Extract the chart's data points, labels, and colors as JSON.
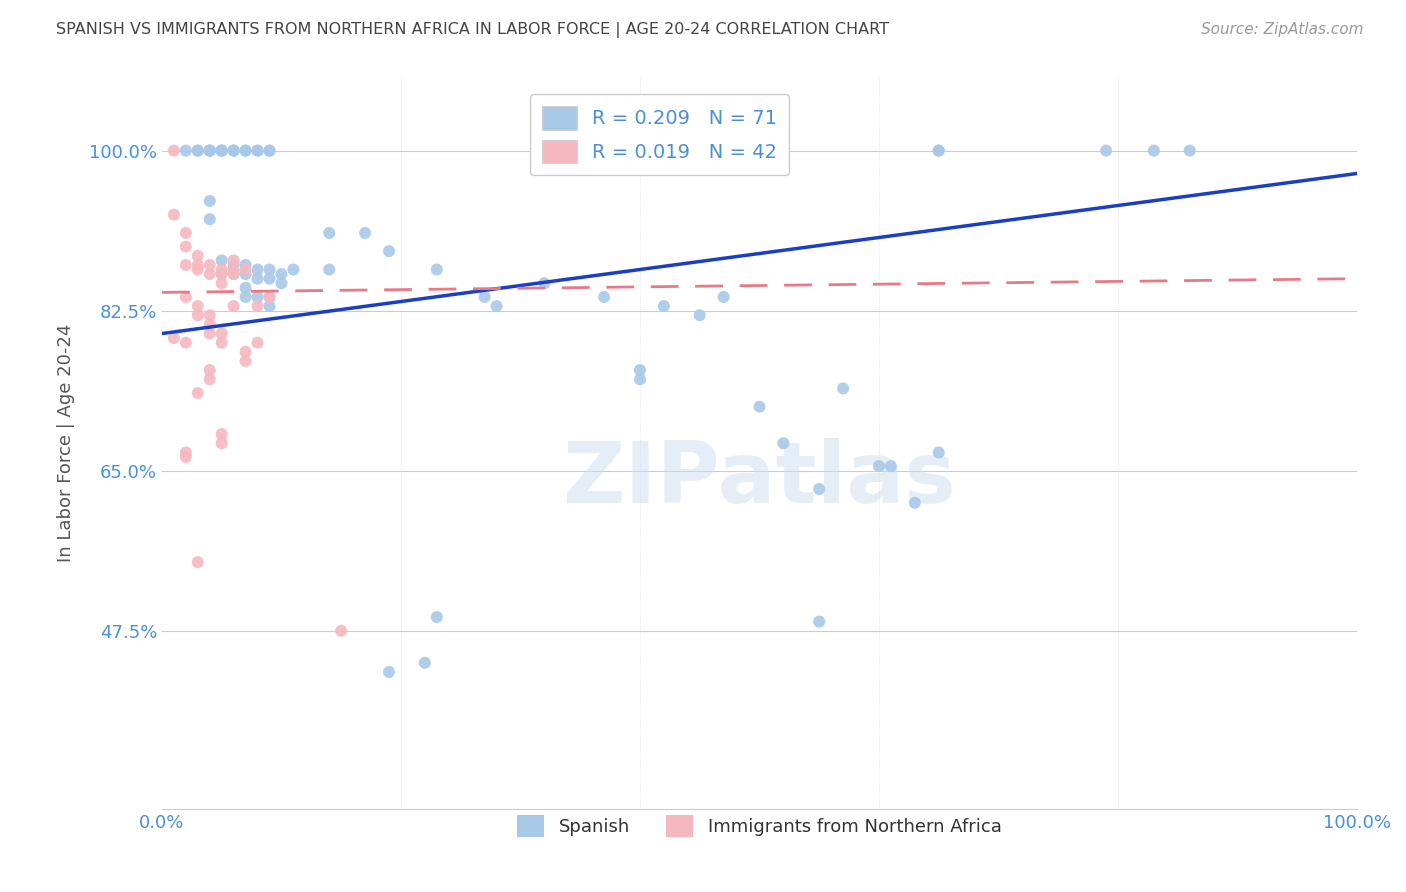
{
  "title": "SPANISH VS IMMIGRANTS FROM NORTHERN AFRICA IN LABOR FORCE | AGE 20-24 CORRELATION CHART",
  "source": "Source: ZipAtlas.com",
  "ylabel": "In Labor Force | Age 20-24",
  "xlim": [
    0.0,
    1.0
  ],
  "ylim": [
    0.28,
    1.08
  ],
  "yticks": [
    0.475,
    0.65,
    0.825,
    1.0
  ],
  "ytick_labels": [
    "47.5%",
    "65.0%",
    "82.5%",
    "100.0%"
  ],
  "xtick_labels": [
    "0.0%",
    "100.0%"
  ],
  "xticks": [
    0.0,
    1.0
  ],
  "legend_r_blue": "0.209",
  "legend_n_blue": "71",
  "legend_r_pink": "0.019",
  "legend_n_pink": "42",
  "blue_color": "#a8c8e8",
  "pink_color": "#f5b8c0",
  "line_blue": "#1a3fc4",
  "line_pink": "#e87a86",
  "title_color": "#444444",
  "axis_color": "#4a90d9",
  "watermark": "ZIPatlas",
  "blue_points": [
    [
      0.02,
      1.0
    ],
    [
      0.03,
      1.0
    ],
    [
      0.03,
      1.0
    ],
    [
      0.04,
      1.0
    ],
    [
      0.04,
      1.0
    ],
    [
      0.04,
      1.0
    ],
    [
      0.04,
      1.0
    ],
    [
      0.05,
      1.0
    ],
    [
      0.05,
      1.0
    ],
    [
      0.05,
      1.0
    ],
    [
      0.05,
      1.0
    ],
    [
      0.06,
      1.0
    ],
    [
      0.06,
      1.0
    ],
    [
      0.06,
      1.0
    ],
    [
      0.07,
      1.0
    ],
    [
      0.07,
      1.0
    ],
    [
      0.08,
      1.0
    ],
    [
      0.08,
      1.0
    ],
    [
      0.09,
      1.0
    ],
    [
      0.09,
      1.0
    ],
    [
      0.04,
      0.945
    ],
    [
      0.04,
      0.925
    ],
    [
      0.05,
      0.88
    ],
    [
      0.05,
      0.865
    ],
    [
      0.06,
      0.875
    ],
    [
      0.06,
      0.865
    ],
    [
      0.07,
      0.875
    ],
    [
      0.07,
      0.865
    ],
    [
      0.07,
      0.85
    ],
    [
      0.07,
      0.84
    ],
    [
      0.08,
      0.87
    ],
    [
      0.08,
      0.86
    ],
    [
      0.08,
      0.84
    ],
    [
      0.09,
      0.87
    ],
    [
      0.09,
      0.86
    ],
    [
      0.09,
      0.84
    ],
    [
      0.09,
      0.83
    ],
    [
      0.1,
      0.865
    ],
    [
      0.1,
      0.855
    ],
    [
      0.11,
      0.87
    ],
    [
      0.14,
      0.91
    ],
    [
      0.14,
      0.87
    ],
    [
      0.17,
      0.91
    ],
    [
      0.19,
      0.89
    ],
    [
      0.23,
      0.87
    ],
    [
      0.27,
      0.84
    ],
    [
      0.28,
      0.83
    ],
    [
      0.32,
      0.855
    ],
    [
      0.37,
      0.84
    ],
    [
      0.4,
      0.76
    ],
    [
      0.4,
      0.75
    ],
    [
      0.42,
      0.83
    ],
    [
      0.45,
      0.82
    ],
    [
      0.47,
      0.84
    ],
    [
      0.5,
      0.72
    ],
    [
      0.52,
      0.68
    ],
    [
      0.55,
      0.63
    ],
    [
      0.57,
      0.74
    ],
    [
      0.6,
      0.655
    ],
    [
      0.61,
      0.655
    ],
    [
      0.63,
      0.615
    ],
    [
      0.65,
      0.67
    ],
    [
      0.55,
      0.485
    ],
    [
      0.22,
      0.44
    ],
    [
      0.23,
      0.49
    ],
    [
      0.19,
      0.43
    ],
    [
      0.65,
      1.0
    ],
    [
      0.65,
      1.0
    ],
    [
      0.79,
      1.0
    ],
    [
      0.83,
      1.0
    ],
    [
      0.86,
      1.0
    ]
  ],
  "pink_points": [
    [
      0.01,
      1.0
    ],
    [
      0.01,
      0.93
    ],
    [
      0.02,
      0.91
    ],
    [
      0.02,
      0.895
    ],
    [
      0.02,
      0.875
    ],
    [
      0.03,
      0.885
    ],
    [
      0.03,
      0.875
    ],
    [
      0.03,
      0.87
    ],
    [
      0.04,
      0.875
    ],
    [
      0.04,
      0.865
    ],
    [
      0.05,
      0.87
    ],
    [
      0.05,
      0.865
    ],
    [
      0.05,
      0.855
    ],
    [
      0.06,
      0.87
    ],
    [
      0.06,
      0.865
    ],
    [
      0.07,
      0.87
    ],
    [
      0.02,
      0.84
    ],
    [
      0.03,
      0.83
    ],
    [
      0.03,
      0.82
    ],
    [
      0.04,
      0.82
    ],
    [
      0.04,
      0.81
    ],
    [
      0.04,
      0.8
    ],
    [
      0.05,
      0.8
    ],
    [
      0.05,
      0.79
    ],
    [
      0.06,
      0.83
    ],
    [
      0.04,
      0.76
    ],
    [
      0.04,
      0.75
    ],
    [
      0.05,
      0.69
    ],
    [
      0.05,
      0.68
    ],
    [
      0.02,
      0.67
    ],
    [
      0.02,
      0.665
    ],
    [
      0.02,
      0.79
    ],
    [
      0.03,
      0.55
    ],
    [
      0.07,
      0.78
    ],
    [
      0.07,
      0.77
    ],
    [
      0.08,
      0.79
    ],
    [
      0.09,
      0.84
    ],
    [
      0.03,
      0.735
    ],
    [
      0.15,
      0.475
    ],
    [
      0.01,
      0.795
    ],
    [
      0.06,
      0.88
    ],
    [
      0.08,
      0.83
    ]
  ],
  "blue_line_start_x": 0.0,
  "blue_line_start_y": 0.8,
  "blue_line_end_x": 1.0,
  "blue_line_end_y": 0.975,
  "pink_line_start_x": 0.0,
  "pink_line_start_y": 0.845,
  "pink_line_end_x": 1.0,
  "pink_line_end_y": 0.86
}
